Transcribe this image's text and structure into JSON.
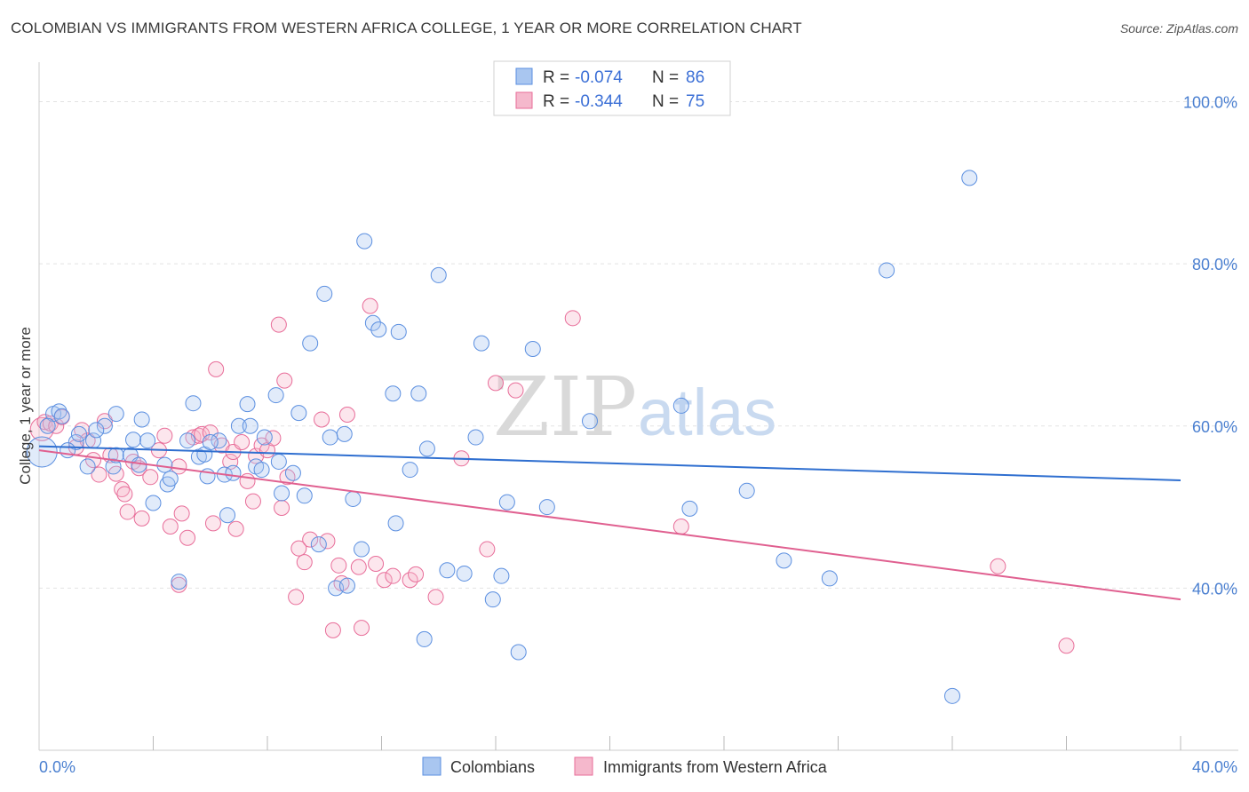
{
  "title": "COLOMBIAN VS IMMIGRANTS FROM WESTERN AFRICA COLLEGE, 1 YEAR OR MORE CORRELATION CHART",
  "source": "Source: ZipAtlas.com",
  "watermark": {
    "zip": "ZIP",
    "atlas": "atlas"
  },
  "colors": {
    "blue": "#5b8fe0",
    "blue_fill": "#a9c6f0",
    "pink": "#e86d99",
    "pink_fill": "#f5b8cc",
    "tick_blue": "#4a7fd0"
  },
  "legend": {
    "rows": [
      {
        "r_label": "R =",
        "r_value": "-0.074",
        "n_label": "N =",
        "n_value": "86"
      },
      {
        "r_label": "R =",
        "r_value": "-0.344",
        "n_label": "N =",
        "n_value": "75"
      }
    ]
  },
  "chart_data": {
    "type": "scatter",
    "ylabel": "College, 1 year or more",
    "xlim": [
      0,
      40
    ],
    "ylim": [
      20,
      104
    ],
    "x_tick_labels": [
      "0.0%",
      "40.0%"
    ],
    "y_tick_labels": [
      "100.0%",
      "80.0%",
      "60.0%",
      "40.0%"
    ],
    "y_tick_values": [
      100,
      80,
      60,
      40
    ],
    "series": [
      {
        "name": "Colombians",
        "color": "#5b8fe0",
        "trend": {
          "x": [
            0,
            40
          ],
          "y": [
            57.5,
            53.3
          ]
        },
        "points": [
          [
            0.1,
            56.8
          ],
          [
            0.5,
            61.5
          ],
          [
            0.7,
            61.8
          ],
          [
            0.8,
            61.2
          ],
          [
            1.3,
            58.0
          ],
          [
            1.4,
            59.0
          ],
          [
            1.7,
            55.0
          ],
          [
            1.9,
            58.2
          ],
          [
            2.3,
            60.0
          ],
          [
            2.6,
            55.0
          ],
          [
            2.7,
            56.4
          ],
          [
            2.7,
            61.5
          ],
          [
            3.2,
            56.4
          ],
          [
            3.3,
            58.3
          ],
          [
            3.5,
            55.2
          ],
          [
            3.6,
            60.8
          ],
          [
            3.8,
            58.2
          ],
          [
            4.0,
            50.5
          ],
          [
            4.4,
            55.2
          ],
          [
            4.5,
            52.8
          ],
          [
            4.6,
            53.5
          ],
          [
            4.9,
            40.8
          ],
          [
            5.2,
            58.2
          ],
          [
            5.4,
            62.8
          ],
          [
            5.6,
            56.2
          ],
          [
            5.8,
            56.5
          ],
          [
            5.9,
            53.8
          ],
          [
            6.3,
            58.2
          ],
          [
            6.5,
            54.0
          ],
          [
            6.6,
            49.0
          ],
          [
            6.8,
            54.2
          ],
          [
            7.0,
            60.0
          ],
          [
            7.3,
            62.7
          ],
          [
            7.4,
            60.0
          ],
          [
            7.6,
            55.0
          ],
          [
            7.8,
            54.6
          ],
          [
            7.9,
            58.6
          ],
          [
            8.3,
            63.8
          ],
          [
            8.4,
            55.6
          ],
          [
            8.5,
            51.7
          ],
          [
            8.9,
            54.2
          ],
          [
            9.1,
            61.6
          ],
          [
            9.3,
            51.4
          ],
          [
            9.5,
            70.2
          ],
          [
            9.8,
            45.4
          ],
          [
            10.0,
            76.3
          ],
          [
            10.2,
            58.6
          ],
          [
            10.4,
            40.0
          ],
          [
            10.7,
            59.0
          ],
          [
            10.8,
            40.3
          ],
          [
            11.0,
            51.0
          ],
          [
            11.3,
            44.8
          ],
          [
            11.4,
            82.8
          ],
          [
            11.7,
            72.7
          ],
          [
            11.9,
            71.9
          ],
          [
            12.4,
            64.0
          ],
          [
            12.5,
            48.0
          ],
          [
            12.6,
            71.6
          ],
          [
            13.0,
            54.6
          ],
          [
            13.3,
            64.0
          ],
          [
            13.5,
            33.7
          ],
          [
            13.6,
            57.2
          ],
          [
            14.0,
            78.6
          ],
          [
            14.3,
            42.2
          ],
          [
            14.9,
            41.8
          ],
          [
            15.3,
            58.6
          ],
          [
            15.5,
            70.2
          ],
          [
            15.9,
            38.6
          ],
          [
            16.2,
            41.5
          ],
          [
            16.4,
            50.6
          ],
          [
            16.8,
            32.1
          ],
          [
            17.3,
            69.5
          ],
          [
            17.8,
            50.0
          ],
          [
            19.3,
            60.6
          ],
          [
            22.5,
            62.5
          ],
          [
            22.8,
            49.8
          ],
          [
            24.8,
            52.0
          ],
          [
            26.1,
            43.4
          ],
          [
            27.7,
            41.2
          ],
          [
            29.7,
            79.2
          ],
          [
            32.0,
            26.7
          ],
          [
            32.6,
            90.6
          ],
          [
            0.3,
            60.0
          ],
          [
            1.0,
            57.0
          ],
          [
            2.0,
            59.5
          ],
          [
            6.0,
            58.0
          ]
        ]
      },
      {
        "name": "Immigrants from Western Africa",
        "color": "#e86d99",
        "trend": {
          "x": [
            0,
            40
          ],
          "y": [
            57.0,
            38.6
          ]
        },
        "points": [
          [
            0.1,
            59.6
          ],
          [
            0.2,
            60.5
          ],
          [
            0.4,
            60.3
          ],
          [
            0.6,
            60.0
          ],
          [
            0.8,
            61.1
          ],
          [
            1.3,
            57.4
          ],
          [
            1.5,
            59.5
          ],
          [
            1.7,
            58.2
          ],
          [
            1.9,
            55.8
          ],
          [
            2.1,
            54.0
          ],
          [
            2.3,
            60.6
          ],
          [
            2.5,
            56.4
          ],
          [
            2.7,
            54.1
          ],
          [
            2.9,
            52.2
          ],
          [
            3.0,
            51.6
          ],
          [
            3.1,
            49.4
          ],
          [
            3.3,
            55.6
          ],
          [
            3.5,
            54.8
          ],
          [
            3.6,
            48.6
          ],
          [
            3.9,
            53.7
          ],
          [
            4.2,
            57.0
          ],
          [
            4.4,
            58.8
          ],
          [
            4.6,
            47.6
          ],
          [
            4.9,
            55.0
          ],
          [
            4.9,
            40.4
          ],
          [
            5.0,
            49.2
          ],
          [
            5.2,
            46.2
          ],
          [
            5.4,
            58.6
          ],
          [
            5.6,
            58.8
          ],
          [
            5.7,
            59.0
          ],
          [
            6.0,
            59.2
          ],
          [
            6.1,
            48.0
          ],
          [
            6.2,
            67.0
          ],
          [
            6.4,
            57.6
          ],
          [
            6.7,
            55.6
          ],
          [
            6.8,
            56.8
          ],
          [
            6.9,
            47.3
          ],
          [
            7.1,
            58.0
          ],
          [
            7.3,
            53.2
          ],
          [
            7.5,
            50.7
          ],
          [
            7.6,
            56.3
          ],
          [
            7.8,
            57.6
          ],
          [
            8.0,
            57.0
          ],
          [
            8.2,
            58.5
          ],
          [
            8.4,
            72.5
          ],
          [
            8.5,
            49.9
          ],
          [
            8.6,
            65.6
          ],
          [
            8.7,
            53.7
          ],
          [
            9.0,
            38.9
          ],
          [
            9.1,
            44.9
          ],
          [
            9.3,
            43.2
          ],
          [
            9.5,
            46.0
          ],
          [
            9.9,
            60.8
          ],
          [
            10.1,
            45.8
          ],
          [
            10.3,
            34.8
          ],
          [
            10.5,
            42.8
          ],
          [
            10.6,
            40.6
          ],
          [
            10.8,
            61.4
          ],
          [
            11.2,
            42.6
          ],
          [
            11.3,
            35.1
          ],
          [
            11.6,
            74.8
          ],
          [
            11.8,
            43.0
          ],
          [
            12.1,
            41.0
          ],
          [
            12.4,
            41.5
          ],
          [
            13.0,
            41.0
          ],
          [
            13.2,
            41.7
          ],
          [
            13.9,
            38.9
          ],
          [
            14.8,
            56.0
          ],
          [
            15.7,
            44.8
          ],
          [
            16.0,
            65.3
          ],
          [
            16.7,
            64.4
          ],
          [
            18.7,
            73.3
          ],
          [
            22.5,
            47.6
          ],
          [
            33.6,
            42.7
          ],
          [
            36.0,
            32.9
          ]
        ]
      }
    ]
  },
  "bottom_legend": [
    {
      "label": "Colombians"
    },
    {
      "label": "Immigrants from Western Africa"
    }
  ]
}
